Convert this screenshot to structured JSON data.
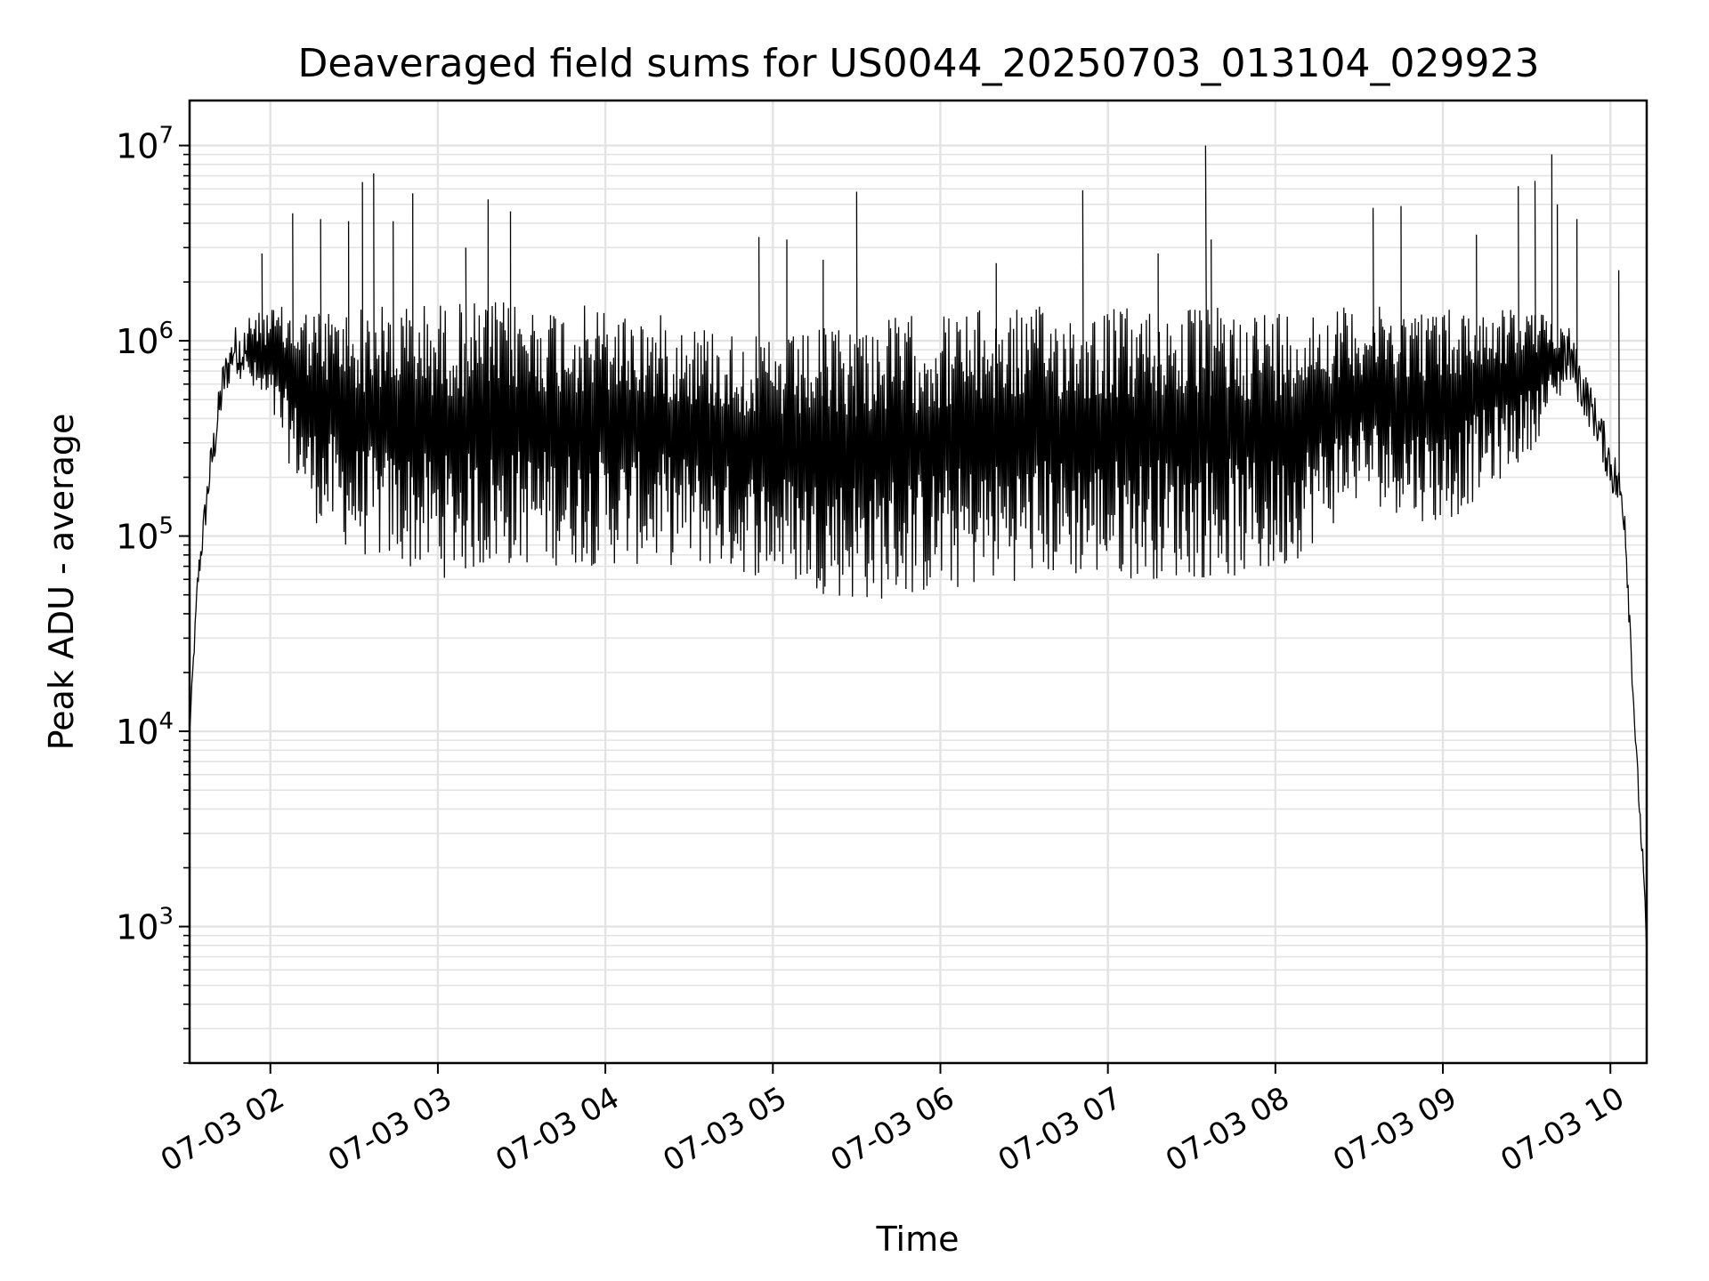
{
  "chart_data": {
    "type": "line",
    "title": "Deaveraged field sums for US0044_20250703_013104_029923",
    "xlabel": "Time",
    "ylabel": "Peak ADU - average",
    "yscale": "log",
    "ylim": [
      200,
      17000000
    ],
    "xlim": [
      "2025-07-03 01:31:04",
      "2025-07-03 10:13:00"
    ],
    "grid": true,
    "legend": "none",
    "line_color": "#000000",
    "grid_color": "#e3e3e3",
    "x_ticks": [
      {
        "t": "2025-07-03 02:00",
        "label": "07-03 02"
      },
      {
        "t": "2025-07-03 03:00",
        "label": "07-03 03"
      },
      {
        "t": "2025-07-03 04:00",
        "label": "07-03 04"
      },
      {
        "t": "2025-07-03 05:00",
        "label": "07-03 05"
      },
      {
        "t": "2025-07-03 06:00",
        "label": "07-03 06"
      },
      {
        "t": "2025-07-03 07:00",
        "label": "07-03 07"
      },
      {
        "t": "2025-07-03 08:00",
        "label": "07-03 08"
      },
      {
        "t": "2025-07-03 09:00",
        "label": "07-03 09"
      },
      {
        "t": "2025-07-03 10:00",
        "label": "07-03 10"
      }
    ],
    "y_ticks": [
      {
        "value": 1000,
        "base": "10",
        "exp": "3"
      },
      {
        "value": 10000,
        "base": "10",
        "exp": "4"
      },
      {
        "value": 100000,
        "base": "10",
        "exp": "5"
      },
      {
        "value": 1000000,
        "base": "10",
        "exp": "6"
      },
      {
        "value": 10000000,
        "base": "10",
        "exp": "7"
      }
    ],
    "envelope": [
      {
        "t": "2025-07-03 01:31",
        "low": 9000,
        "high": 10000
      },
      {
        "t": "2025-07-03 01:34",
        "low": 50000,
        "high": 70000
      },
      {
        "t": "2025-07-03 01:38",
        "low": 150000,
        "high": 250000
      },
      {
        "t": "2025-07-03 01:43",
        "low": 450000,
        "high": 800000
      },
      {
        "t": "2025-07-03 01:47",
        "low": 700000,
        "high": 1200000
      },
      {
        "t": "2025-07-03 02:00",
        "low": 400000,
        "high": 1500000
      },
      {
        "t": "2025-07-03 02:15",
        "low": 120000,
        "high": 1500000
      },
      {
        "t": "2025-07-03 02:30",
        "low": 80000,
        "high": 1500000
      },
      {
        "t": "2025-07-03 03:00",
        "low": 60000,
        "high": 1600000
      },
      {
        "t": "2025-07-03 03:30",
        "low": 70000,
        "high": 1600000
      },
      {
        "t": "2025-07-03 04:00",
        "low": 70000,
        "high": 1500000
      },
      {
        "t": "2025-07-03 04:30",
        "low": 70000,
        "high": 1300000
      },
      {
        "t": "2025-07-03 05:00",
        "low": 60000,
        "high": 1000000
      },
      {
        "t": "2025-07-03 05:30",
        "low": 45000,
        "high": 1300000
      },
      {
        "t": "2025-07-03 06:00",
        "low": 50000,
        "high": 1400000
      },
      {
        "t": "2025-07-03 06:30",
        "low": 60000,
        "high": 1500000
      },
      {
        "t": "2025-07-03 07:00",
        "low": 60000,
        "high": 1500000
      },
      {
        "t": "2025-07-03 07:30",
        "low": 60000,
        "high": 1500000
      },
      {
        "t": "2025-07-03 08:00",
        "low": 60000,
        "high": 1500000
      },
      {
        "t": "2025-07-03 08:30",
        "low": 150000,
        "high": 1500000
      },
      {
        "t": "2025-07-03 09:00",
        "low": 110000,
        "high": 1500000
      },
      {
        "t": "2025-07-03 09:30",
        "low": 250000,
        "high": 1500000
      },
      {
        "t": "2025-07-03 09:45",
        "low": 600000,
        "high": 1200000
      },
      {
        "t": "2025-07-03 09:55",
        "low": 300000,
        "high": 500000
      },
      {
        "t": "2025-07-03 10:05",
        "low": 100000,
        "high": 200000
      },
      {
        "t": "2025-07-03 10:09",
        "low": 8000,
        "high": 10000
      },
      {
        "t": "2025-07-03 10:12",
        "low": 1400,
        "high": 2000
      },
      {
        "t": "2025-07-03 10:13",
        "low": 600,
        "high": 800
      }
    ],
    "spikes": [
      {
        "t": "2025-07-03 01:57",
        "value": 2800000
      },
      {
        "t": "2025-07-03 02:08",
        "value": 4500000
      },
      {
        "t": "2025-07-03 02:18",
        "value": 4200000
      },
      {
        "t": "2025-07-03 02:28",
        "value": 4100000
      },
      {
        "t": "2025-07-03 02:33",
        "value": 6500000
      },
      {
        "t": "2025-07-03 02:37",
        "value": 7200000
      },
      {
        "t": "2025-07-03 02:44",
        "value": 4100000
      },
      {
        "t": "2025-07-03 02:51",
        "value": 5700000
      },
      {
        "t": "2025-07-03 03:10",
        "value": 3000000
      },
      {
        "t": "2025-07-03 03:18",
        "value": 5300000
      },
      {
        "t": "2025-07-03 03:26",
        "value": 4600000
      },
      {
        "t": "2025-07-03 04:55",
        "value": 3400000
      },
      {
        "t": "2025-07-03 05:05",
        "value": 3300000
      },
      {
        "t": "2025-07-03 05:18",
        "value": 2600000
      },
      {
        "t": "2025-07-03 05:30",
        "value": 5800000
      },
      {
        "t": "2025-07-03 06:20",
        "value": 2500000
      },
      {
        "t": "2025-07-03 06:51",
        "value": 5900000
      },
      {
        "t": "2025-07-03 07:18",
        "value": 2800000
      },
      {
        "t": "2025-07-03 07:35",
        "value": 10000000
      },
      {
        "t": "2025-07-03 07:37",
        "value": 3300000
      },
      {
        "t": "2025-07-03 08:35",
        "value": 4800000
      },
      {
        "t": "2025-07-03 08:45",
        "value": 4900000
      },
      {
        "t": "2025-07-03 09:12",
        "value": 3500000
      },
      {
        "t": "2025-07-03 09:27",
        "value": 6200000
      },
      {
        "t": "2025-07-03 09:33",
        "value": 6600000
      },
      {
        "t": "2025-07-03 09:39",
        "value": 9000000
      },
      {
        "t": "2025-07-03 09:41",
        "value": 5000000
      },
      {
        "t": "2025-07-03 09:48",
        "value": 4200000
      },
      {
        "t": "2025-07-03 10:03",
        "value": 2300000
      }
    ]
  }
}
